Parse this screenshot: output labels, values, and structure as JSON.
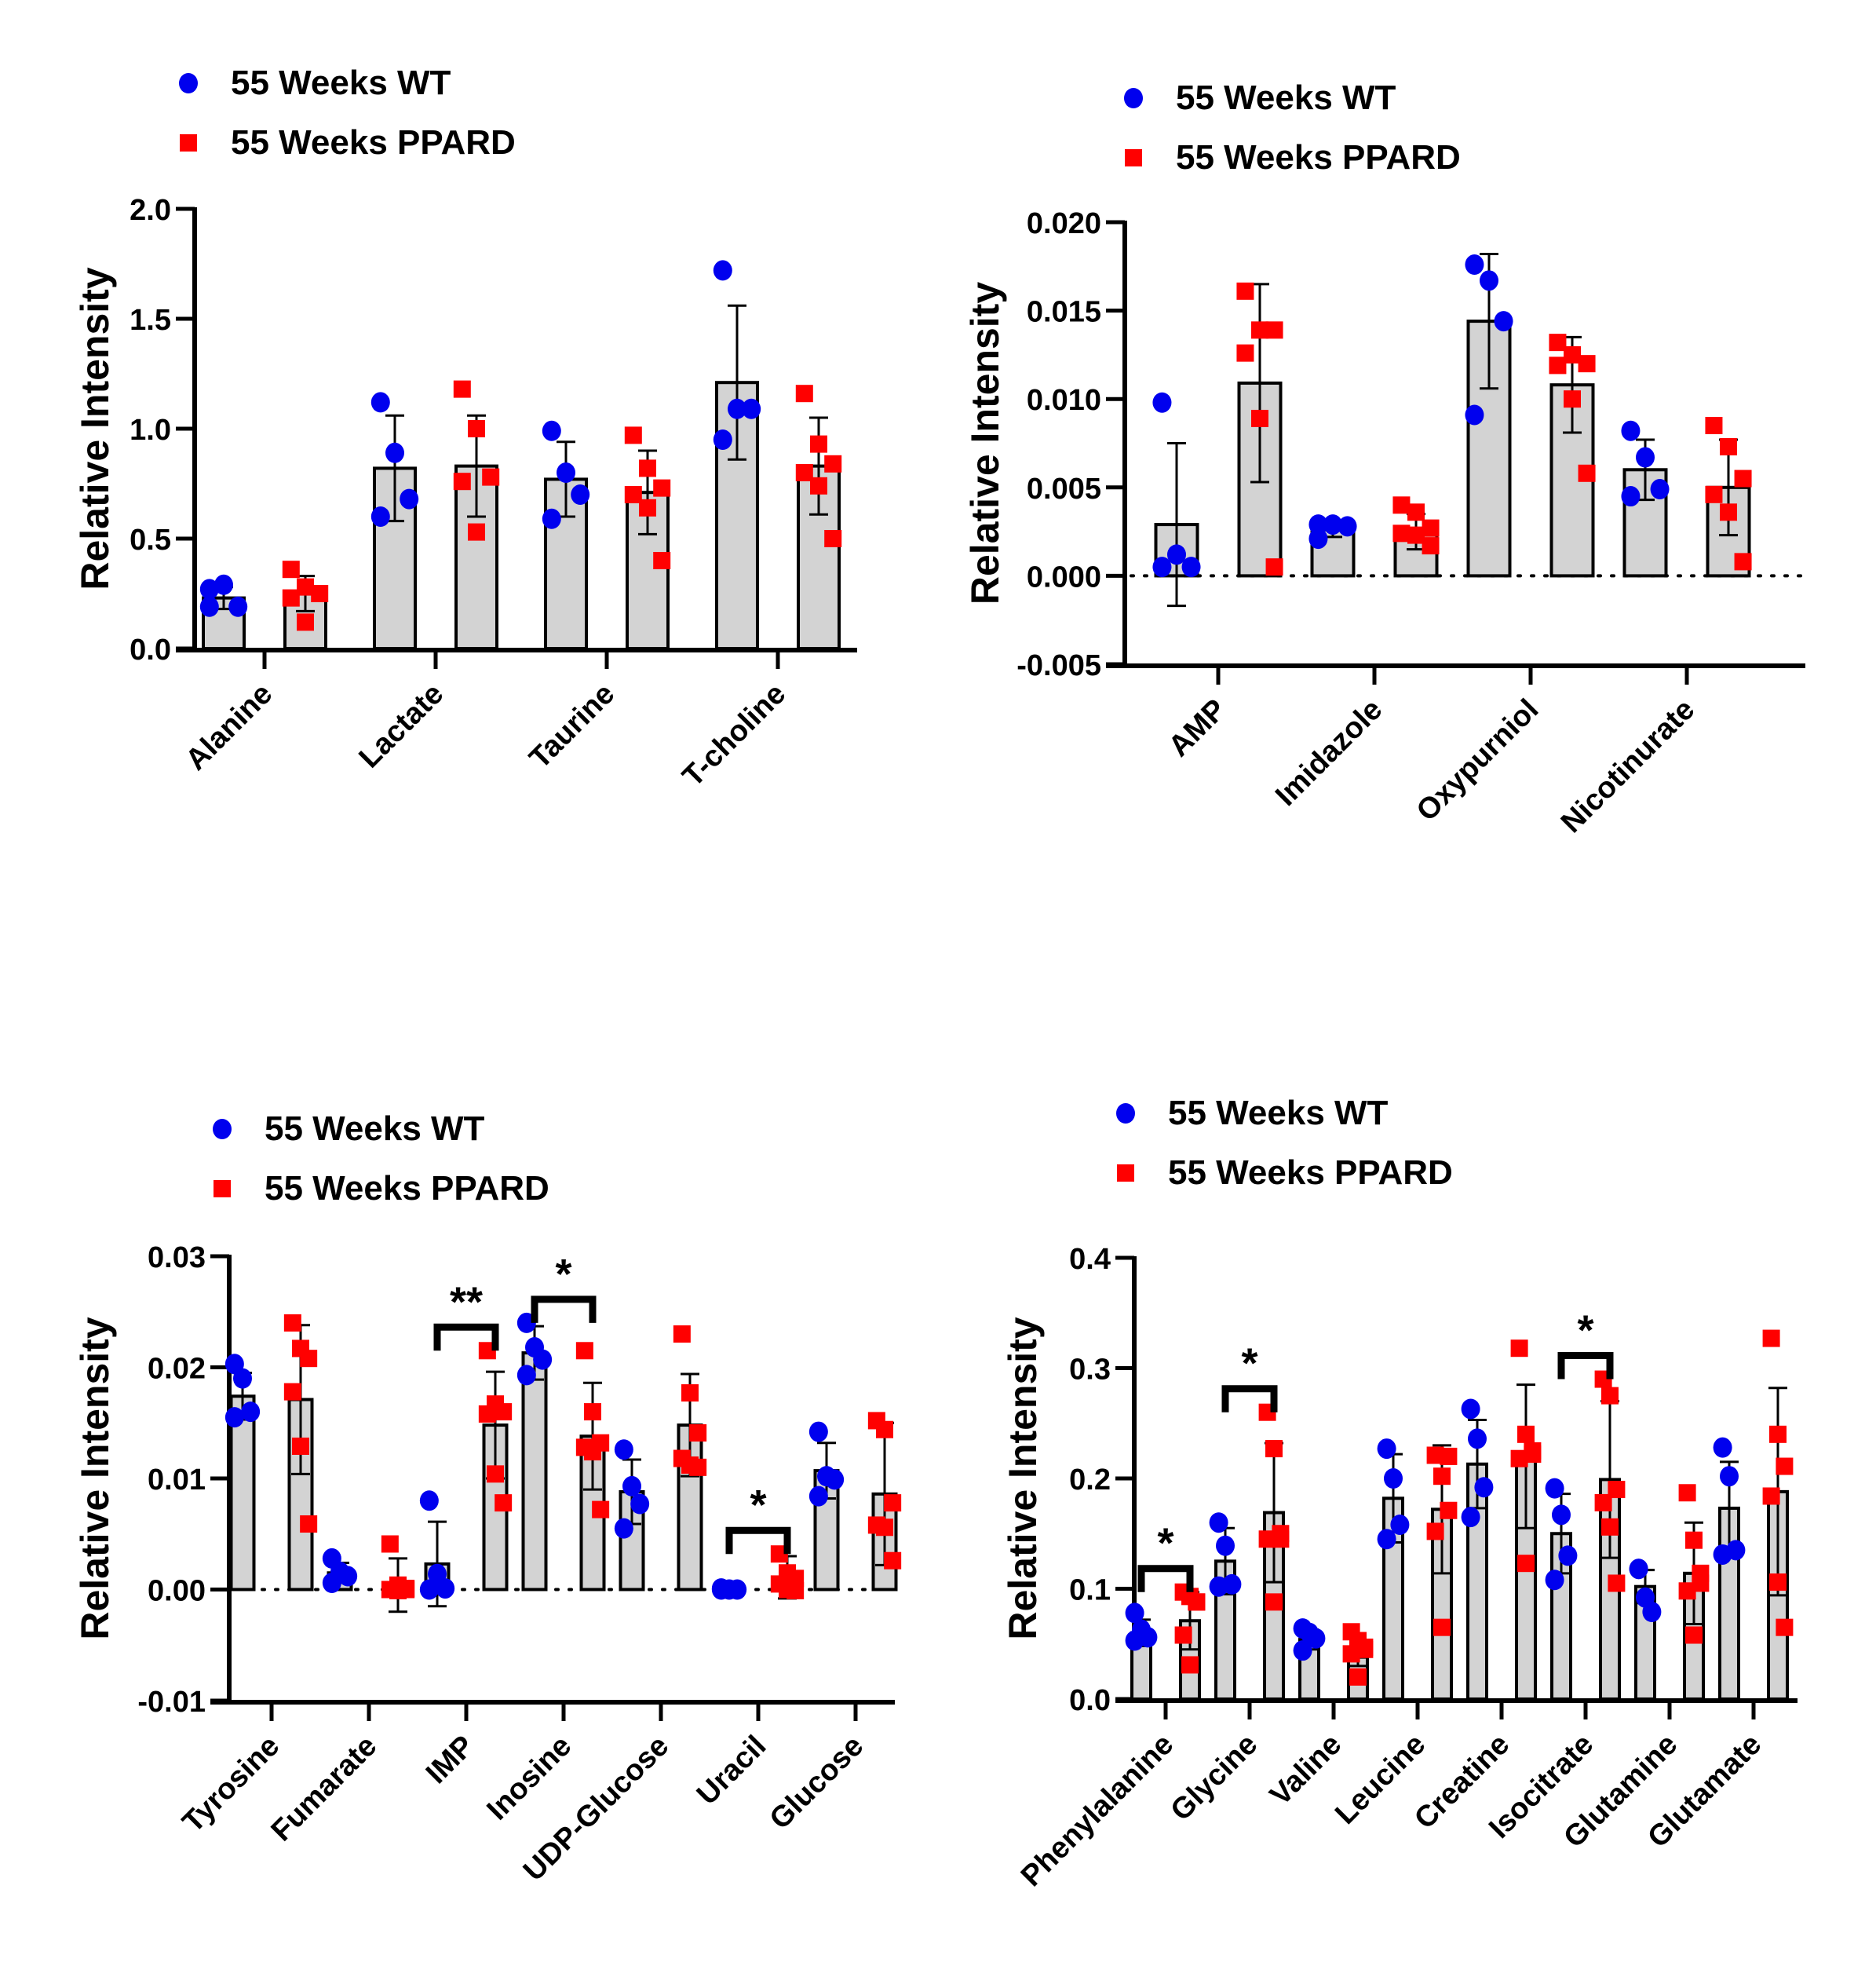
{
  "legend": {
    "wt_label": "55 Weeks WT",
    "ppard_label": "55 Weeks PPARD",
    "wt_color": "#0000EE",
    "ppard_color": "#FF0000",
    "bar_fill": "#D3D3D3"
  },
  "chart_data": [
    {
      "type": "bar",
      "title": "",
      "xlabel": "",
      "ylabel": "Relative Intensity",
      "ylim": [
        0,
        2.0
      ],
      "yticks": [
        "0.0",
        "0.5",
        "1.0",
        "1.5",
        "2.0"
      ],
      "ytick_values": [
        0,
        0.5,
        1.0,
        1.5,
        2.0
      ],
      "zero_line": false,
      "legend_position": "top-left",
      "categories": [
        "Alanine",
        "Lactate",
        "Taurine",
        "T-choline"
      ],
      "series": [
        {
          "name": "55 Weeks WT",
          "means": [
            0.23,
            0.82,
            0.77,
            1.21
          ],
          "sd": [
            0.05,
            0.24,
            0.17,
            0.35
          ],
          "points": [
            [
              0.27,
              0.29,
              0.19,
              0.19
            ],
            [
              1.12,
              0.89,
              0.68,
              0.6
            ],
            [
              0.99,
              0.8,
              0.7,
              0.59
            ],
            [
              1.72,
              1.09,
              1.09,
              0.95
            ]
          ]
        },
        {
          "name": "55 Weeks PPARD",
          "means": [
            0.25,
            0.83,
            0.71,
            0.83
          ],
          "sd": [
            0.08,
            0.23,
            0.19,
            0.22
          ],
          "points": [
            [
              0.36,
              0.28,
              0.25,
              0.23,
              0.12
            ],
            [
              1.18,
              1.0,
              0.78,
              0.76,
              0.53
            ],
            [
              0.97,
              0.82,
              0.73,
              0.7,
              0.64,
              0.4
            ],
            [
              1.16,
              0.93,
              0.84,
              0.8,
              0.74,
              0.5
            ]
          ]
        }
      ],
      "significance": []
    },
    {
      "type": "bar",
      "title": "",
      "xlabel": "",
      "ylabel": "Relative Intensity",
      "ylim": [
        -0.005,
        0.02
      ],
      "yticks": [
        "-0.005",
        "0.000",
        "0.005",
        "0.010",
        "0.015",
        "0.020"
      ],
      "ytick_values": [
        -0.005,
        0.0,
        0.005,
        0.01,
        0.015,
        0.02
      ],
      "zero_line": true,
      "legend_position": "top-left",
      "categories": [
        "AMP",
        "Imidazole",
        "Oxypurniol",
        "Nicotinurate"
      ],
      "series": [
        {
          "name": "55 Weeks WT",
          "means": [
            0.0029,
            0.0026,
            0.0144,
            0.006
          ],
          "sd": [
            0.0046,
            0.0004,
            0.0038,
            0.0017
          ],
          "points": [
            [
              0.0098,
              0.0012,
              0.0005,
              0.0005
            ],
            [
              0.0029,
              0.0029,
              0.0028,
              0.0021
            ],
            [
              0.0176,
              0.0167,
              0.0144,
              0.0091
            ],
            [
              0.0082,
              0.0067,
              0.0049,
              0.0045
            ]
          ]
        },
        {
          "name": "55 Weeks PPARD",
          "means": [
            0.0109,
            0.0025,
            0.0108,
            0.005
          ],
          "sd": [
            0.0056,
            0.001,
            0.0027,
            0.0027
          ],
          "points": [
            [
              0.0161,
              0.0139,
              0.0139,
              0.0126,
              0.0089,
              0.0005
            ],
            [
              0.004,
              0.0036,
              0.0027,
              0.0024,
              0.0023,
              0.0017
            ],
            [
              0.0132,
              0.0125,
              0.012,
              0.0119,
              0.01,
              0.0058
            ],
            [
              0.0085,
              0.0073,
              0.0055,
              0.0046,
              0.0036,
              0.0008
            ]
          ]
        }
      ],
      "significance": []
    },
    {
      "type": "bar",
      "title": "",
      "xlabel": "",
      "ylabel": "Relative Intensity",
      "ylim": [
        -0.01,
        0.03
      ],
      "yticks": [
        "-0.01",
        "0.00",
        "0.01",
        "0.02",
        "0.03"
      ],
      "ytick_values": [
        -0.01,
        0.0,
        0.01,
        0.02,
        0.03
      ],
      "zero_line": true,
      "legend_position": "top-left",
      "categories": [
        "Tyrosine",
        "Fumarate",
        "IMP",
        "Inosine",
        "UDP-Glucose",
        "Uracil",
        "Glucose"
      ],
      "series": [
        {
          "name": "55 Weeks WT",
          "means": [
            0.0174,
            0.0015,
            0.0023,
            0.0213,
            0.0088,
            0.0001,
            0.0107
          ],
          "sd": [
            0.0021,
            0.0009,
            0.0038,
            0.0024,
            0.0029,
            0.0001,
            0.0025
          ],
          "points": [
            [
              0.0203,
              0.019,
              0.016,
              0.0155
            ],
            [
              0.0028,
              0.0016,
              0.0012,
              0.0006
            ],
            [
              0.008,
              0.0014,
              0.0001,
              0.0
            ],
            [
              0.024,
              0.0218,
              0.0207,
              0.0193
            ],
            [
              0.0126,
              0.0093,
              0.0077,
              0.0055
            ],
            [
              0.0001,
              0.0,
              0.0,
              0.0
            ],
            [
              0.0142,
              0.0102,
              0.0099,
              0.0084
            ]
          ]
        },
        {
          "name": "55 Weeks PPARD",
          "means": [
            0.0171,
            0.0004,
            0.0148,
            0.0138,
            0.0148,
            0.0011,
            0.0086
          ],
          "sd": [
            0.0067,
            0.0024,
            0.0048,
            0.0048,
            0.0046,
            0.0019,
            0.0064
          ],
          "points": [
            [
              0.024,
              0.0217,
              0.0208,
              0.0178,
              0.0129,
              0.0059
            ],
            [
              0.0041,
              0.0004,
              0.0001,
              0.0,
              -0.0001,
              0.0
            ],
            [
              0.0215,
              0.0167,
              0.016,
              0.0158,
              0.0104,
              0.0078
            ],
            [
              0.0215,
              0.016,
              0.0132,
              0.0128,
              0.0124,
              0.0072
            ],
            [
              0.023,
              0.0177,
              0.0141,
              0.0118,
              0.0112,
              0.011
            ],
            [
              0.0032,
              0.0015,
              0.001,
              0.0005,
              0.0,
              -0.0001
            ],
            [
              0.0152,
              0.0144,
              0.0078,
              0.0058,
              0.0056,
              0.0026
            ]
          ]
        }
      ],
      "significance": [
        {
          "category": "IMP",
          "label": "**"
        },
        {
          "category": "Inosine",
          "label": "*"
        },
        {
          "category": "Uracil",
          "label": "*"
        }
      ]
    },
    {
      "type": "bar",
      "title": "",
      "xlabel": "",
      "ylabel": "Relative Intensity",
      "ylim": [
        0,
        0.4
      ],
      "yticks": [
        "0.0",
        "0.1",
        "0.2",
        "0.3",
        "0.4"
      ],
      "ytick_values": [
        0,
        0.1,
        0.2,
        0.3,
        0.4
      ],
      "zero_line": false,
      "legend_position": "top-left",
      "categories": [
        "Phenylalanine",
        "Glycine",
        "Valine",
        "Leucine",
        "Creatine",
        "Isocitrate",
        "Glutamine",
        "Glutamate"
      ],
      "series": [
        {
          "name": "55 Weeks WT",
          "means": [
            0.06,
            0.125,
            0.054,
            0.182,
            0.213,
            0.15,
            0.102,
            0.173
          ],
          "sd": [
            0.012,
            0.03,
            0.009,
            0.04,
            0.04,
            0.036,
            0.015,
            0.042
          ],
          "points": [
            [
              0.078,
              0.063,
              0.056,
              0.053
            ],
            [
              0.16,
              0.139,
              0.104,
              0.102
            ],
            [
              0.064,
              0.06,
              0.055,
              0.044
            ],
            [
              0.227,
              0.2,
              0.158,
              0.145
            ],
            [
              0.263,
              0.236,
              0.192,
              0.165
            ],
            [
              0.191,
              0.167,
              0.13,
              0.108
            ],
            [
              0.118,
              0.092,
              0.079,
              0.118
            ],
            [
              0.228,
              0.202,
              0.135,
              0.131
            ]
          ]
        },
        {
          "name": "55 Weeks PPARD",
          "means": [
            0.071,
            0.169,
            0.038,
            0.172,
            0.22,
            0.199,
            0.114,
            0.188
          ],
          "sd": [
            0.026,
            0.063,
            0.008,
            0.058,
            0.065,
            0.071,
            0.046,
            0.094
          ],
          "points": [
            [
              0.097,
              0.093,
              0.088,
              0.058,
              0.031,
              0.088
            ],
            [
              0.26,
              0.227,
              0.15,
              0.145,
              0.088,
              0.145
            ],
            [
              0.061,
              0.053,
              0.047,
              0.041,
              0.02,
              0.045
            ],
            [
              0.221,
              0.202,
              0.171,
              0.152,
              0.065,
              0.22
            ],
            [
              0.318,
              0.24,
              0.222,
              0.218,
              0.123,
              0.225
            ],
            [
              0.29,
              0.275,
              0.19,
              0.178,
              0.156,
              0.105
            ],
            [
              0.187,
              0.144,
              0.114,
              0.098,
              0.058,
              0.105
            ],
            [
              0.327,
              0.24,
              0.211,
              0.184,
              0.106,
              0.065
            ]
          ]
        }
      ],
      "significance": [
        {
          "category": "Phenylalanine",
          "label": "*"
        },
        {
          "category": "Glycine",
          "label": "*"
        },
        {
          "category": "Isocitrate",
          "label": "*"
        }
      ]
    }
  ]
}
